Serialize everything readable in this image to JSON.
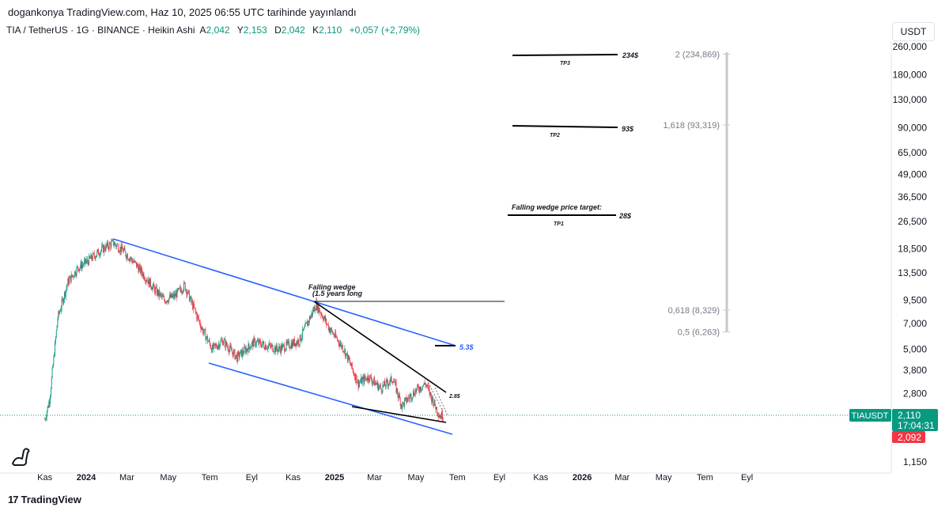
{
  "header": {
    "text": "dogankonya TradingView.com, Haz 10, 2025 06:55 UTC tarihinde yayınlandı"
  },
  "symbol": {
    "name": "TIA / TetherUS · 1G · BINANCE · Heikin Ashi",
    "open_label": "A",
    "open": "2,042",
    "high_label": "Y",
    "high": "2,153",
    "low_label": "D",
    "low": "2,042",
    "close_label": "K",
    "close": "2,110",
    "change": "+0,057 (+2,79%)"
  },
  "currency": "USDT",
  "price_badges": {
    "ticker": "TIAUSDT",
    "last_price": "2,110",
    "countdown": "17:04:31",
    "prev_price": "2,092"
  },
  "footer": {
    "logo_text": "TradingView"
  },
  "colors": {
    "up": "#089981",
    "down": "#f23645",
    "channel": "#2962ff",
    "text": "#131722"
  },
  "chart_data": {
    "type": "candlestick",
    "style": "Heikin Ashi",
    "scale": "log",
    "y_ticks": [
      "260,000",
      "180,000",
      "130,000",
      "90,000",
      "65,000",
      "49,000",
      "36,500",
      "26,500",
      "18,500",
      "13,500",
      "9,500",
      "7,000",
      "5,000",
      "3,800",
      "2,800",
      "1,150"
    ],
    "x_ticks": [
      {
        "label": "Kas",
        "bold": false
      },
      {
        "label": "2024",
        "bold": true
      },
      {
        "label": "Mar",
        "bold": false
      },
      {
        "label": "May",
        "bold": false
      },
      {
        "label": "Tem",
        "bold": false
      },
      {
        "label": "Eyl",
        "bold": false
      },
      {
        "label": "Kas",
        "bold": false
      },
      {
        "label": "2025",
        "bold": true
      },
      {
        "label": "Mar",
        "bold": false
      },
      {
        "label": "May",
        "bold": false
      },
      {
        "label": "Tem",
        "bold": false
      },
      {
        "label": "Eyl",
        "bold": false
      },
      {
        "label": "Kas",
        "bold": false
      },
      {
        "label": "2026",
        "bold": true
      },
      {
        "label": "Mar",
        "bold": false
      },
      {
        "label": "May",
        "bold": false
      },
      {
        "label": "Tem",
        "bold": false
      },
      {
        "label": "Eyl",
        "bold": false
      }
    ],
    "price_path": [
      [
        "2023-11-01",
        2.0
      ],
      [
        "2023-11-08",
        2.6
      ],
      [
        "2023-11-20",
        7.5
      ],
      [
        "2023-12-05",
        12.0
      ],
      [
        "2023-12-20",
        14.5
      ],
      [
        "2024-01-05",
        16.0
      ],
      [
        "2024-01-25",
        18.5
      ],
      [
        "2024-02-10",
        20.0
      ],
      [
        "2024-02-25",
        18.0
      ],
      [
        "2024-03-15",
        15.0
      ],
      [
        "2024-04-10",
        11.0
      ],
      [
        "2024-04-25",
        9.5
      ],
      [
        "2024-05-10",
        10.0
      ],
      [
        "2024-05-25",
        11.5
      ],
      [
        "2024-06-20",
        6.5
      ],
      [
        "2024-07-05",
        5.0
      ],
      [
        "2024-07-20",
        5.6
      ],
      [
        "2024-08-10",
        4.5
      ],
      [
        "2024-09-05",
        5.5
      ],
      [
        "2024-10-10",
        5.0
      ],
      [
        "2024-11-10",
        5.6
      ],
      [
        "2024-12-05",
        9.0
      ],
      [
        "2024-12-25",
        6.5
      ],
      [
        "2025-01-15",
        5.0
      ],
      [
        "2025-02-05",
        3.2
      ],
      [
        "2025-02-20",
        3.5
      ],
      [
        "2025-03-10",
        3.0
      ],
      [
        "2025-03-28",
        3.4
      ],
      [
        "2025-04-10",
        2.4
      ],
      [
        "2025-04-30",
        2.9
      ],
      [
        "2025-05-15",
        3.2
      ],
      [
        "2025-05-25",
        2.6
      ],
      [
        "2025-06-05",
        2.1
      ],
      [
        "2025-06-10",
        2.11
      ]
    ],
    "last_price": 2.11,
    "fib_levels": [
      {
        "label": "2 (234,869)",
        "value": 234.869
      },
      {
        "label": "1,618 (93,319)",
        "value": 93.319
      },
      {
        "label": "0,618 (8,329)",
        "value": 8.329
      },
      {
        "label": "0,5 (6,263)",
        "value": 6.263
      }
    ],
    "annotations": {
      "wedge_title": "Falling wedge",
      "wedge_sub": "(1.5 years long",
      "tp3_label": "TP3",
      "tp3_price": "234$",
      "tp2_label": "TP2",
      "tp2_price": "93$",
      "target_title": "Falling wedge price target:",
      "tp1_label": "TP1",
      "tp1_price": "28$",
      "channel_target": "5.3$",
      "wedge_break": "2.8$"
    }
  }
}
